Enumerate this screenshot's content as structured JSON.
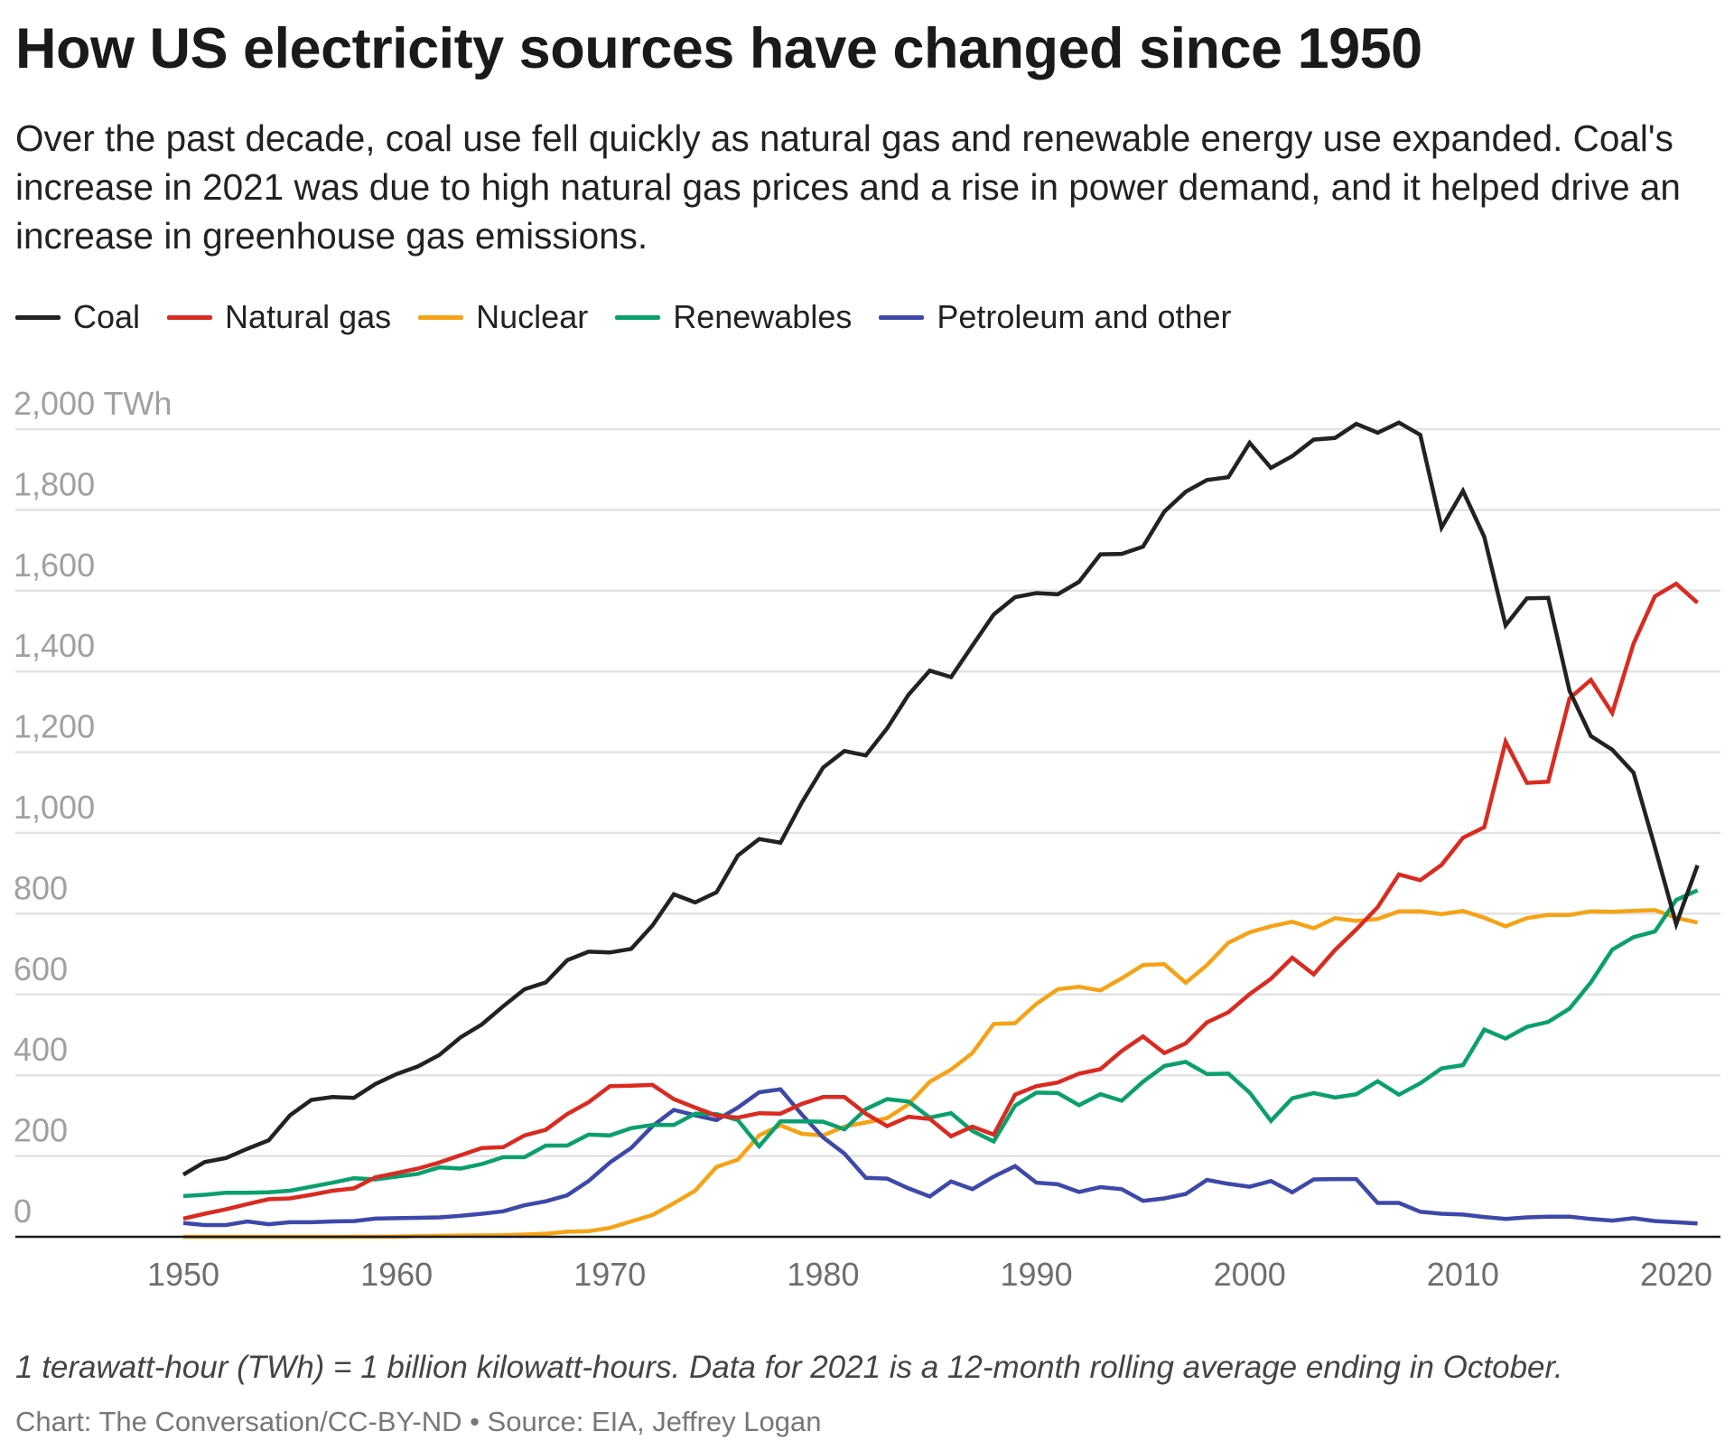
{
  "title": "How US electricity sources have changed since 1950",
  "subtitle": "Over the past decade, coal use fell quickly as natural gas and renewable energy use expanded. Coal's increase in 2021 was due to high natural gas prices and a rise in power demand, and it helped drive an increase in greenhouse gas emissions.",
  "footnote": "1 terawatt-hour (TWh) = 1 billion kilowatt-hours. Data for 2021 is a 12-month rolling average ending in October.",
  "source": "Chart: The Conversation/CC-BY-ND • Source: EIA, Jeffrey Logan",
  "chart_data": {
    "type": "line",
    "title": "How US electricity sources have changed since 1950",
    "xlabel": "",
    "ylabel": "",
    "ylim": [
      0,
      2000
    ],
    "xlim": [
      1950,
      2021
    ],
    "grid": true,
    "legend_position": "top-left",
    "y_ticks": [
      "0",
      "200",
      "400",
      "600",
      "800",
      "1,000",
      "1,200",
      "1,400",
      "1,600",
      "1,800",
      "2,000 TWh"
    ],
    "y_tick_values": [
      0,
      200,
      400,
      600,
      800,
      1000,
      1200,
      1400,
      1600,
      1800,
      2000
    ],
    "x_ticks": [
      "1950",
      "1960",
      "1970",
      "1980",
      "1990",
      "2000",
      "2010",
      "2020"
    ],
    "x_tick_values": [
      1950,
      1960,
      1970,
      1980,
      1990,
      2000,
      2010,
      2020
    ],
    "x": [
      1950,
      1951,
      1952,
      1953,
      1954,
      1955,
      1956,
      1957,
      1958,
      1959,
      1960,
      1961,
      1962,
      1963,
      1964,
      1965,
      1966,
      1967,
      1968,
      1969,
      1970,
      1971,
      1972,
      1973,
      1974,
      1975,
      1976,
      1977,
      1978,
      1979,
      1980,
      1981,
      1982,
      1983,
      1984,
      1985,
      1986,
      1987,
      1988,
      1989,
      1990,
      1991,
      1992,
      1993,
      1994,
      1995,
      1996,
      1997,
      1998,
      1999,
      2000,
      2001,
      2002,
      2003,
      2004,
      2005,
      2006,
      2007,
      2008,
      2009,
      2010,
      2011,
      2012,
      2013,
      2014,
      2015,
      2016,
      2017,
      2018,
      2019,
      2020,
      2021
    ],
    "series": [
      {
        "name": "Coal",
        "color": "#222222",
        "values": [
          154,
          185,
          195,
          218,
          239,
          301,
          339,
          346,
          344,
          378,
          403,
          422,
          450,
          494,
          526,
          571,
          613,
          630,
          685,
          706,
          704,
          713,
          771,
          848,
          828,
          853,
          944,
          985,
          976,
          1075,
          1162,
          1203,
          1192,
          1259,
          1342,
          1402,
          1386,
          1464,
          1541,
          1584,
          1594,
          1591,
          1622,
          1690,
          1691,
          1709,
          1796,
          1845,
          1874,
          1881,
          1966,
          1904,
          1933,
          1974,
          1978,
          2013,
          1991,
          2016,
          1986,
          1756,
          1847,
          1733,
          1514,
          1581,
          1582,
          1352,
          1240,
          1206,
          1149,
          965,
          774,
          920
        ]
      },
      {
        "name": "Natural gas",
        "color": "#d92b20",
        "values": [
          45,
          57,
          68,
          81,
          93,
          95,
          104,
          114,
          120,
          147,
          158,
          169,
          184,
          202,
          220,
          222,
          251,
          265,
          304,
          333,
          373,
          374,
          376,
          341,
          320,
          300,
          295,
          306,
          305,
          329,
          346,
          346,
          305,
          274,
          297,
          292,
          249,
          273,
          253,
          352,
          373,
          382,
          404,
          415,
          460,
          496,
          455,
          479,
          531,
          556,
          601,
          639,
          691,
          650,
          710,
          761,
          816,
          897,
          883,
          921,
          988,
          1014,
          1226,
          1124,
          1127,
          1333,
          1379,
          1297,
          1469,
          1586,
          1617,
          1570
        ]
      },
      {
        "name": "Nuclear",
        "color": "#f5a316",
        "values": [
          0,
          0,
          0,
          0,
          0,
          0,
          0,
          0.1,
          0.2,
          0.2,
          0.5,
          1.7,
          2.3,
          3.2,
          3.3,
          3.7,
          5.5,
          7.7,
          12.5,
          13.9,
          22,
          38,
          54,
          83,
          114,
          173,
          191,
          251,
          276,
          255,
          251,
          273,
          283,
          294,
          328,
          384,
          414,
          455,
          527,
          529,
          577,
          613,
          619,
          610,
          640,
          673,
          675,
          629,
          673,
          728,
          754,
          769,
          780,
          764,
          789,
          782,
          787,
          806,
          806,
          799,
          807,
          790,
          769,
          789,
          797,
          797,
          806,
          805,
          807,
          809,
          790,
          778
        ]
      },
      {
        "name": "Renewables",
        "color": "#0aa06e",
        "values": [
          101,
          104,
          109,
          109,
          110,
          114,
          124,
          134,
          145,
          142,
          149,
          156,
          172,
          169,
          180,
          197,
          197,
          226,
          226,
          253,
          251,
          269,
          277,
          277,
          305,
          304,
          289,
          224,
          286,
          286,
          285,
          266,
          316,
          341,
          335,
          295,
          306,
          262,
          236,
          325,
          357,
          356,
          326,
          353,
          337,
          384,
          423,
          433,
          403,
          404,
          357,
          287,
          343,
          356,
          345,
          353,
          385,
          352,
          380,
          417,
          425,
          513,
          491,
          520,
          532,
          565,
          630,
          711,
          742,
          756,
          834,
          858
        ]
      },
      {
        "name": "Petroleum and other",
        "color": "#3d49a8",
        "values": [
          34,
          29,
          29,
          38,
          31,
          36,
          36,
          38,
          39,
          45,
          46,
          47,
          48,
          52,
          57,
          63,
          78,
          88,
          103,
          138,
          184,
          220,
          274,
          314,
          301,
          289,
          320,
          358,
          365,
          303,
          246,
          206,
          146,
          144,
          120,
          100,
          137,
          118,
          149,
          175,
          134,
          130,
          111,
          123,
          118,
          89,
          95,
          106,
          141,
          131,
          124,
          138,
          110,
          142,
          143,
          143,
          84,
          84,
          62,
          57,
          55,
          49,
          44,
          48,
          50,
          50,
          44,
          40,
          46,
          39,
          36,
          33
        ]
      }
    ]
  }
}
